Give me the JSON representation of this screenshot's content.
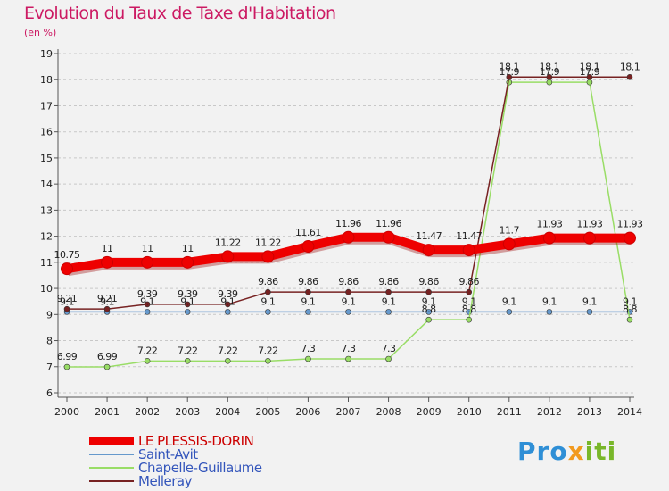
{
  "header": {
    "title": "Evolution du Taux de Taxe d'Habitation",
    "subtitle": "(en %)"
  },
  "logo": {
    "part1": "Pro",
    "part2": "x",
    "part3": "iti"
  },
  "chart_data": {
    "type": "line",
    "title": "Evolution du Taux de Taxe d'Habitation",
    "ylabel": "(en %)",
    "xlabel": "",
    "x": [
      2000,
      2001,
      2002,
      2003,
      2004,
      2005,
      2006,
      2007,
      2008,
      2009,
      2010,
      2011,
      2012,
      2013,
      2014
    ],
    "ylim": [
      6,
      19
    ],
    "yticks": [
      6,
      7,
      8,
      9,
      10,
      11,
      12,
      13,
      14,
      15,
      16,
      17,
      18,
      19
    ],
    "grid": "horizontal dashed",
    "legend_position": "bottom-left",
    "series": [
      {
        "name": "LE PLESSIS-DORIN",
        "color": "#ee0000",
        "values": [
          10.75,
          11,
          11,
          11,
          11.22,
          11.22,
          11.61,
          11.96,
          11.96,
          11.47,
          11.47,
          11.7,
          11.93,
          11.93,
          11.93
        ],
        "labels": [
          "10.75",
          "11",
          "11",
          "11",
          "11.22",
          "11.22",
          "11.61",
          "11.96",
          "11.96",
          "11.47",
          "11.47",
          "11.7",
          "11.93",
          "11.93",
          "11.93"
        ]
      },
      {
        "name": "Saint-Avit",
        "color": "#6699cc",
        "values": [
          9.1,
          9.1,
          9.1,
          9.1,
          9.1,
          9.1,
          9.1,
          9.1,
          9.1,
          9.1,
          9.1,
          9.1,
          9.1,
          9.1,
          9.1
        ],
        "labels": [
          "9.1",
          "9.1",
          "9.1",
          "9.1",
          "9.1",
          "9.1",
          "9.1",
          "9.1",
          "9.1",
          "9.1",
          "9.1",
          "9.1",
          "9.1",
          "9.1",
          "9.1"
        ]
      },
      {
        "name": "Chapelle-Guillaume",
        "color": "#99dd66",
        "values": [
          6.99,
          6.99,
          7.22,
          7.22,
          7.22,
          7.22,
          7.3,
          7.3,
          7.3,
          8.8,
          8.8,
          17.9,
          17.9,
          17.9,
          8.8
        ],
        "labels": [
          "6.99",
          "6.99",
          "7.22",
          "7.22",
          "7.22",
          "7.22",
          "7.3",
          "7.3",
          "7.3",
          "8.8",
          "8.8",
          "17.9",
          "17.9",
          "17.9",
          "8.8"
        ]
      },
      {
        "name": "Melleray",
        "color": "#772222",
        "values": [
          9.21,
          9.21,
          9.39,
          9.39,
          9.39,
          9.86,
          9.86,
          9.86,
          9.86,
          9.86,
          9.86,
          18.1,
          18.1,
          18.1,
          18.1
        ],
        "labels": [
          "9.21",
          "9.21",
          "9.39",
          "9.39",
          "9.39",
          "9.86",
          "9.86",
          "9.86",
          "9.86",
          "9.86",
          "9.86",
          "18.1",
          "18.1",
          "18.1",
          "18.1"
        ]
      }
    ]
  }
}
